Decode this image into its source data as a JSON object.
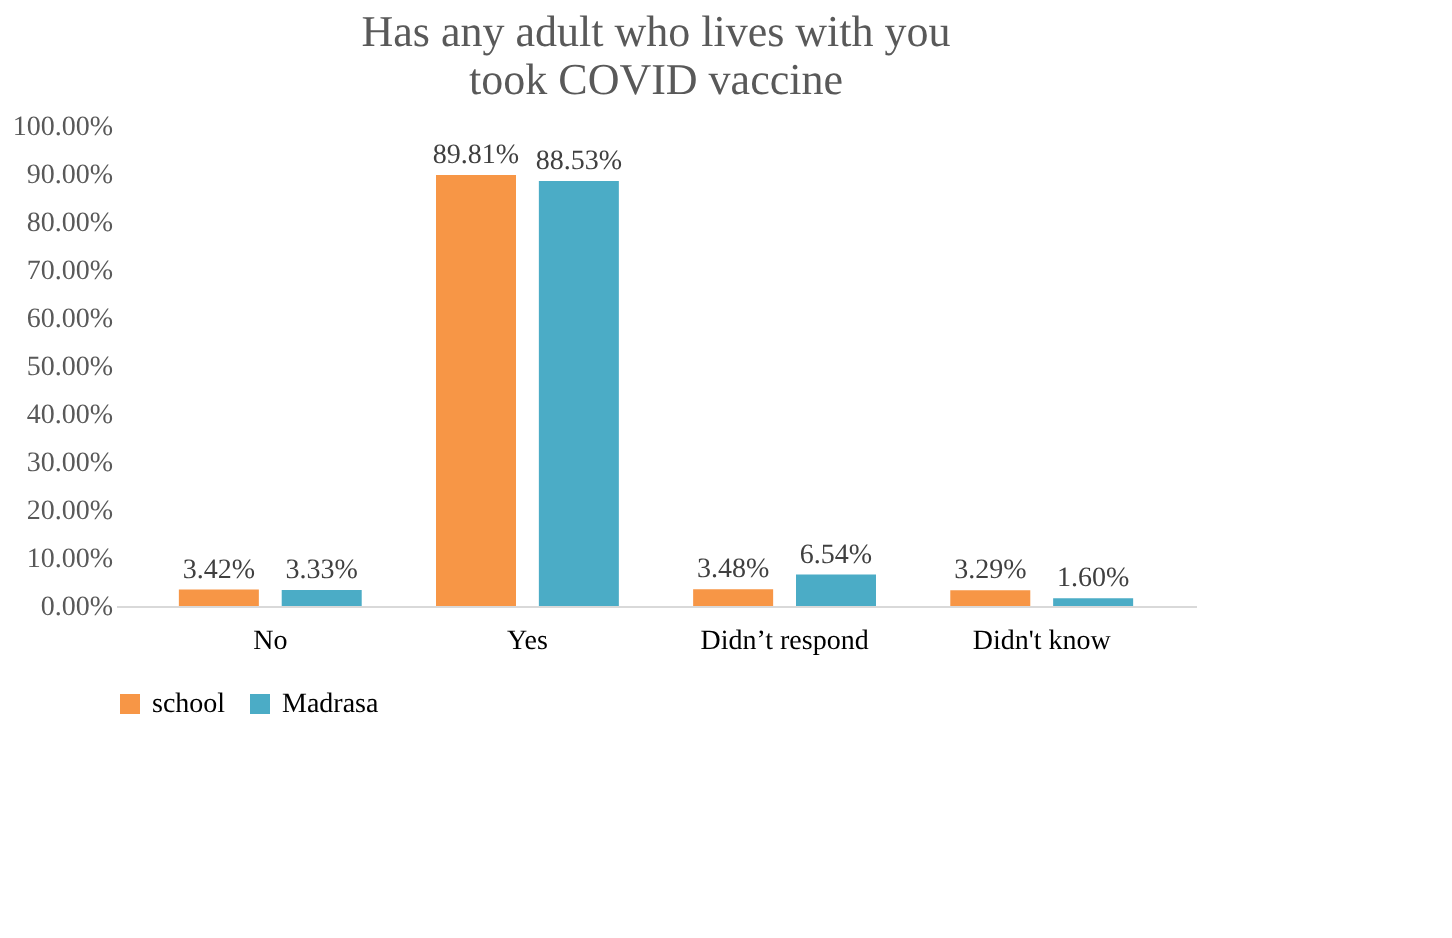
{
  "chart_data": {
    "type": "bar",
    "title": "Has any adult who lives with you took COVID vaccine",
    "categories": [
      "No",
      "Yes",
      "Didn’t respond",
      "Didn't know"
    ],
    "series": [
      {
        "name": "school",
        "color": "#f79646",
        "values": [
          3.42,
          89.81,
          3.48,
          3.29
        ],
        "value_labels": [
          "3.42%",
          "89.81%",
          "3.48%",
          "3.29%"
        ]
      },
      {
        "name": "Madrasa",
        "color": "#4bacc6",
        "values": [
          3.33,
          88.53,
          6.54,
          1.6
        ],
        "value_labels": [
          "3.33%",
          "88.53%",
          "6.54%",
          "1.60%"
        ]
      }
    ],
    "ylim": [
      0,
      100
    ],
    "yticks": [
      {
        "value": 0,
        "label": "0.00%"
      },
      {
        "value": 10,
        "label": "10.00%"
      },
      {
        "value": 20,
        "label": "20.00%"
      },
      {
        "value": 30,
        "label": "30.00%"
      },
      {
        "value": 40,
        "label": "40.00%"
      },
      {
        "value": 50,
        "label": "50.00%"
      },
      {
        "value": 60,
        "label": "60.00%"
      },
      {
        "value": 70,
        "label": "70.00%"
      },
      {
        "value": 80,
        "label": "80.00%"
      },
      {
        "value": 90,
        "label": "90.00%"
      },
      {
        "value": 100,
        "label": "100.00%"
      }
    ],
    "grid": false,
    "legend": "bottom"
  }
}
